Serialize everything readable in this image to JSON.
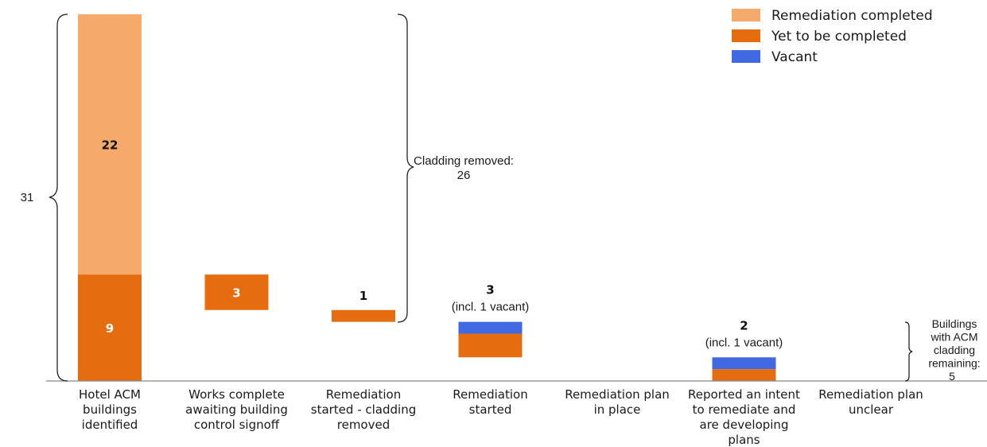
{
  "chart_data": {
    "type": "bar",
    "subtype": "waterfall",
    "categories": [
      "Hotel ACM buildings identified",
      "Works complete awaiting building control signoff",
      "Remediation started - cladding removed",
      "Remediation started",
      "Remediation plan in place",
      "Reported an intent to remediate and are developing plans",
      "Remediation plan unclear"
    ],
    "category_lines": [
      [
        "Hotel ACM",
        "buildings",
        "identified"
      ],
      [
        "Works complete",
        "awaiting building",
        "control signoff"
      ],
      [
        "Remediation",
        "started - cladding",
        "removed"
      ],
      [
        "Remediation",
        "started"
      ],
      [
        "Remediation plan",
        "in place"
      ],
      [
        "Reported an intent",
        "to remediate and",
        "are developing",
        "plans"
      ],
      [
        "Remediation plan",
        "unclear"
      ]
    ],
    "series": [
      {
        "name": "Remediation completed",
        "values": [
          22,
          0,
          0,
          0,
          0,
          0,
          0
        ]
      },
      {
        "name": "Yet to be completed",
        "values": [
          9,
          3,
          1,
          2,
          0,
          1,
          0
        ]
      },
      {
        "name": "Vacant",
        "values": [
          0,
          0,
          0,
          1,
          0,
          1,
          0
        ]
      }
    ],
    "bar_labels": {
      "0": {
        "completed": "22",
        "yet": "9"
      },
      "1": {
        "total": "3"
      },
      "2": {
        "total": "1"
      },
      "3": {
        "total": "3",
        "note": "(incl. 1 vacant)"
      },
      "5": {
        "total": "2",
        "note": "(incl. 1 vacant)"
      }
    },
    "colors": {
      "Remediation completed": "#f5aa6b",
      "Yet to be completed": "#e56c0f",
      "Vacant": "#4169e1",
      "inside_label_light": "#ffffff",
      "inside_label_dark": "#111111",
      "axis": "#555555"
    },
    "annotations": {
      "total": "31",
      "cladding_removed_line1": "Cladding removed:",
      "cladding_removed_line2": "26",
      "remaining_lines": [
        "Buildings",
        "with ACM",
        "cladding",
        "remaining:",
        "5"
      ]
    },
    "ylim": [
      0,
      31
    ],
    "legend_position": "top-right",
    "grid": false
  }
}
